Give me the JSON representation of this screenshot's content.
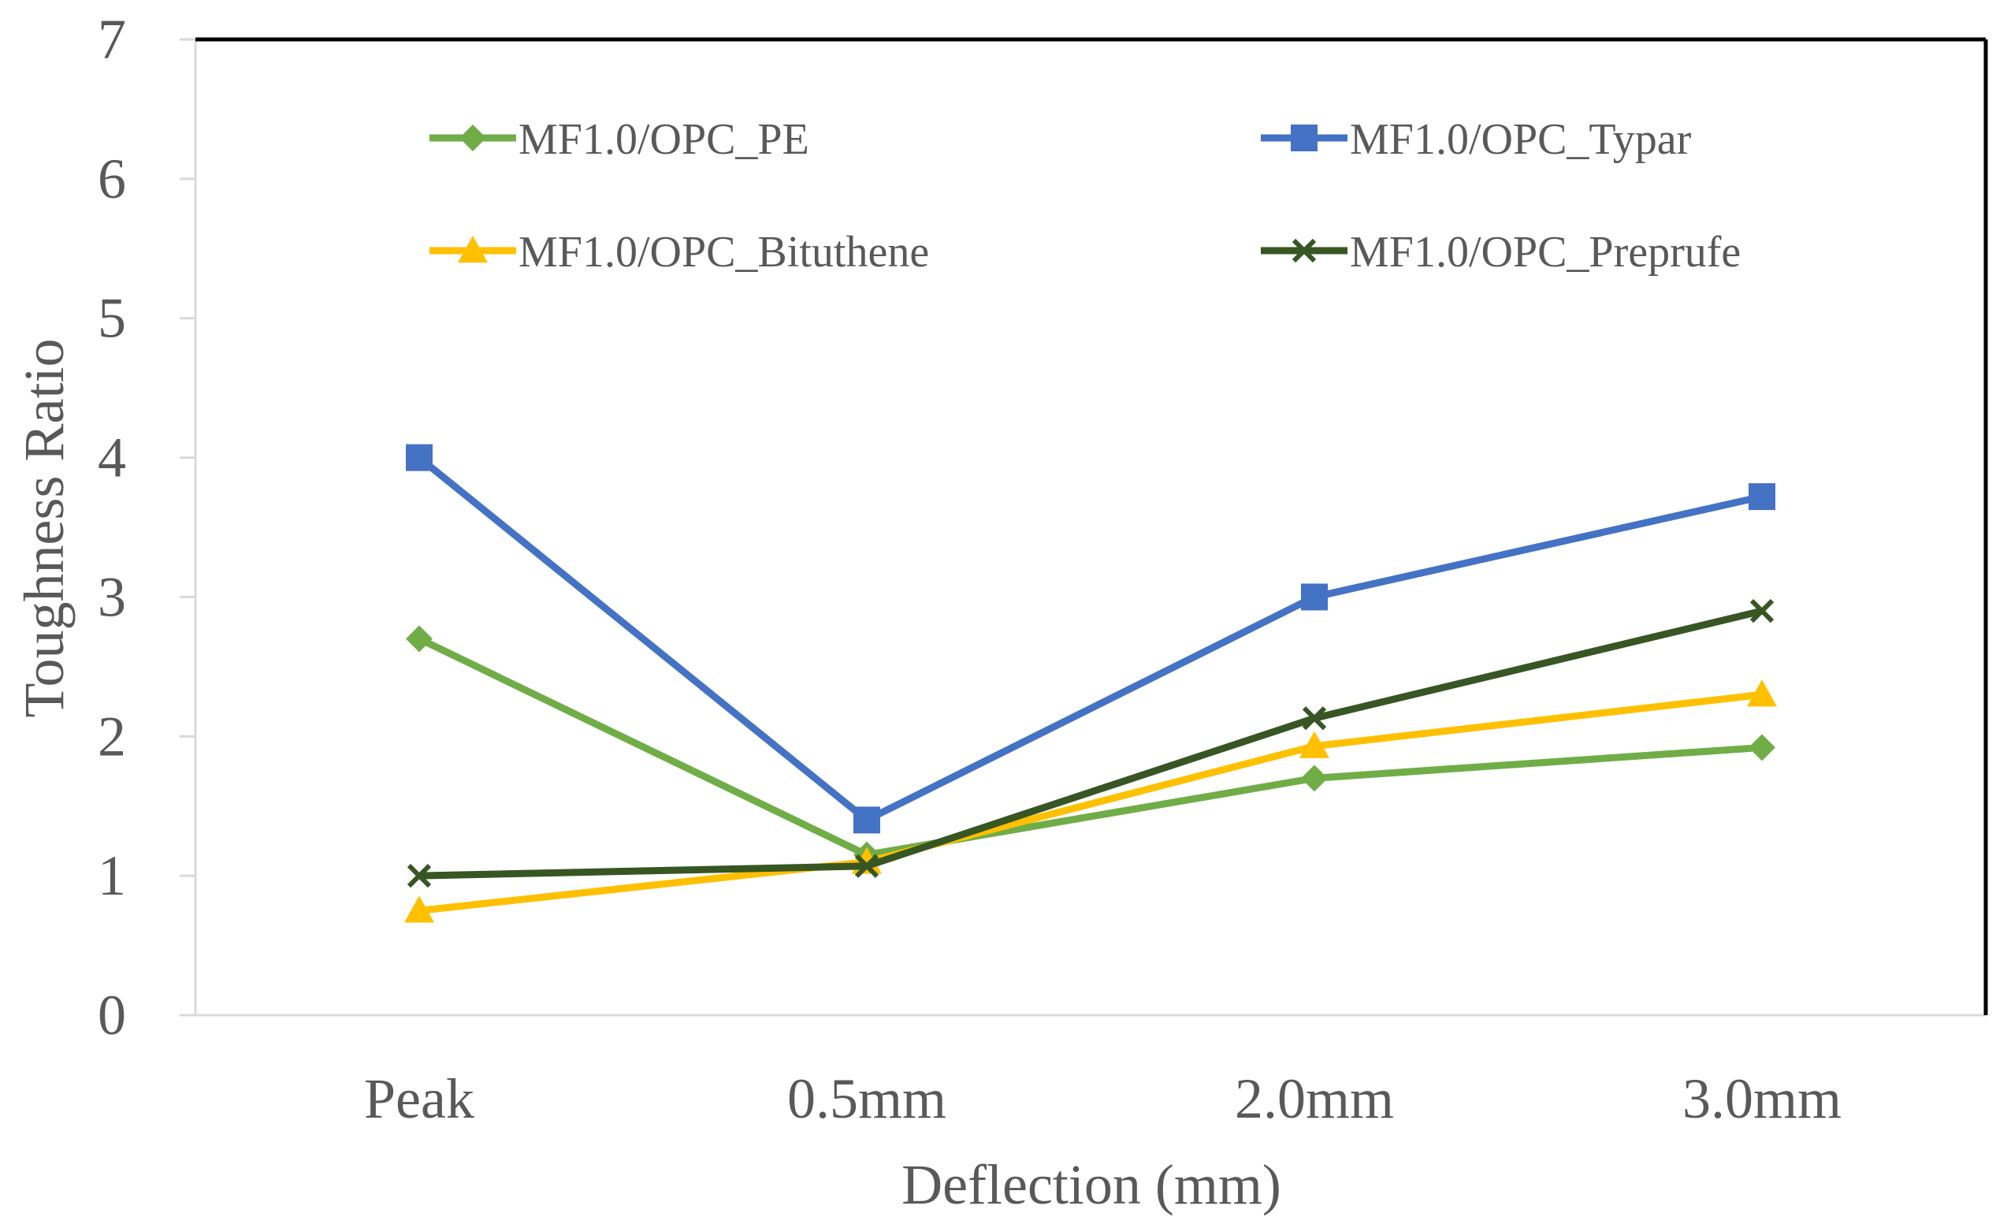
{
  "chart_data": {
    "type": "line",
    "title": "",
    "xlabel": "Deflection (mm)",
    "ylabel": "Toughness Ratio",
    "categories": [
      "Peak",
      "0.5mm",
      "2.0mm",
      "3.0mm"
    ],
    "ylim": [
      0,
      7
    ],
    "yticks": [
      "0",
      "1",
      "2",
      "3",
      "4",
      "5",
      "6",
      "7"
    ],
    "grid": false,
    "legend_position": "top",
    "series": [
      {
        "name": "MF1.0/OPC_PE",
        "values": [
          2.7,
          1.15,
          1.7,
          1.92
        ],
        "color": "#70AD47",
        "marker": "diamond"
      },
      {
        "name": "MF1.0/OPC_Typar",
        "values": [
          4.0,
          1.4,
          3.0,
          3.72
        ],
        "color": "#4472C4",
        "marker": "square"
      },
      {
        "name": "MF1.0/OPC_Bituthene",
        "values": [
          0.75,
          1.1,
          1.93,
          2.3
        ],
        "color": "#FFC000",
        "marker": "triangle"
      },
      {
        "name": "MF1.0/OPC_Preprufe",
        "values": [
          1.0,
          1.07,
          2.13,
          2.9
        ],
        "color": "#375623",
        "marker": "x"
      }
    ]
  }
}
